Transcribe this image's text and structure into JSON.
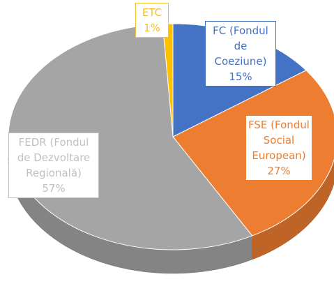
{
  "chart_data": {
    "type": "pie",
    "categories": [
      "ETC",
      "FC (Fondul de Coeziune)",
      "FSE (Fondul Social European)",
      "FEDR (Fondul de Dezvoltare Regională)"
    ],
    "values": [
      1,
      15,
      27,
      57
    ],
    "value_labels": [
      "1%",
      "15%",
      "27%",
      "57%"
    ],
    "colors": [
      "#ffc000",
      "#4472c4",
      "#ed7d31",
      "#a5a5a5"
    ]
  }
}
